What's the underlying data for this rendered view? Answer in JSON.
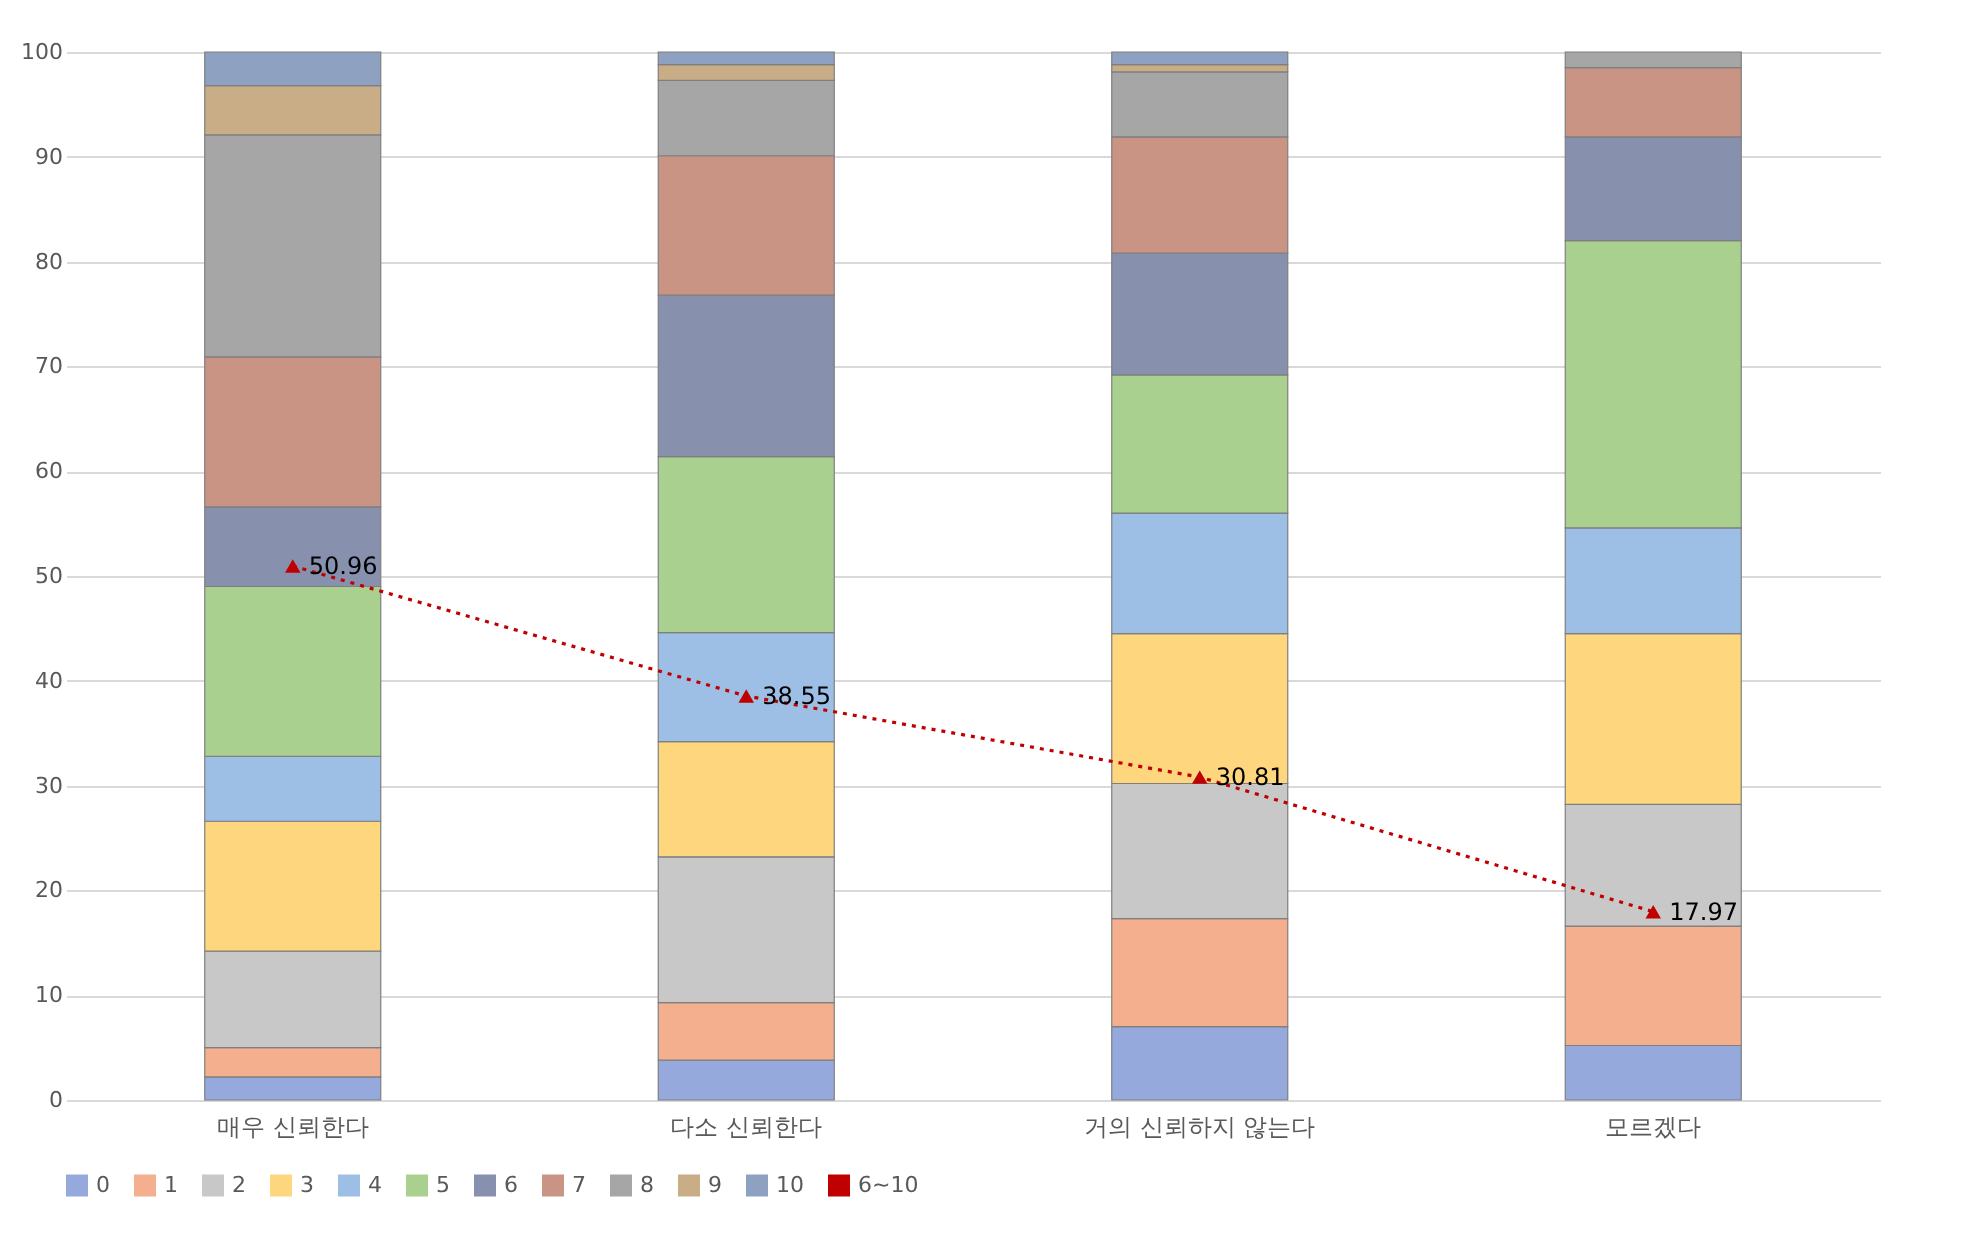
{
  "chart_data": {
    "type": "bar",
    "stacked": true,
    "categories": [
      "매우 신뢰한다",
      "다소 신뢰한다",
      "거의 신뢰하지 않는다",
      "모르겠다"
    ],
    "ylim": [
      0,
      100
    ],
    "yticks": [
      0,
      10,
      20,
      30,
      40,
      50,
      60,
      70,
      80,
      90,
      100
    ],
    "grid": "y",
    "legend": "bottom",
    "series": [
      {
        "name": "0",
        "color": "#95a9dc",
        "values": [
          2.2,
          3.8,
          7.0,
          5.2
        ]
      },
      {
        "name": "1",
        "color": "#f4b08e",
        "values": [
          2.8,
          5.5,
          10.3,
          11.4
        ]
      },
      {
        "name": "2",
        "color": "#c8c8c8",
        "values": [
          9.2,
          13.9,
          12.9,
          11.6
        ]
      },
      {
        "name": "3",
        "color": "#fed67e",
        "values": [
          12.4,
          11.0,
          14.3,
          16.3
        ]
      },
      {
        "name": "4",
        "color": "#9dbfe6",
        "values": [
          6.2,
          10.4,
          11.5,
          10.1
        ]
      },
      {
        "name": "5",
        "color": "#a9d08e",
        "values": [
          16.2,
          16.8,
          13.2,
          27.4
        ]
      },
      {
        "name": "6",
        "color": "#8790ad",
        "values": [
          7.6,
          15.4,
          11.6,
          9.9
        ]
      },
      {
        "name": "7",
        "color": "#c99484",
        "values": [
          14.3,
          13.3,
          11.1,
          6.6
        ]
      },
      {
        "name": "8",
        "color": "#a6a6a6",
        "values": [
          21.2,
          7.2,
          6.2,
          1.5
        ]
      },
      {
        "name": "9",
        "color": "#c8ad86",
        "values": [
          4.7,
          1.5,
          0.7,
          0
        ]
      },
      {
        "name": "10",
        "color": "#8ea1c0",
        "values": [
          3.2,
          1.2,
          1.2,
          0
        ]
      },
      {
        "name": "6~10",
        "type": "line",
        "color": "#c00000",
        "marker": "triangle",
        "line_style": "dotted",
        "values": [
          50.96,
          38.55,
          30.81,
          17.97
        ],
        "value_labels": [
          "50.96",
          "38.55",
          "30.81",
          "17.97"
        ]
      }
    ]
  }
}
